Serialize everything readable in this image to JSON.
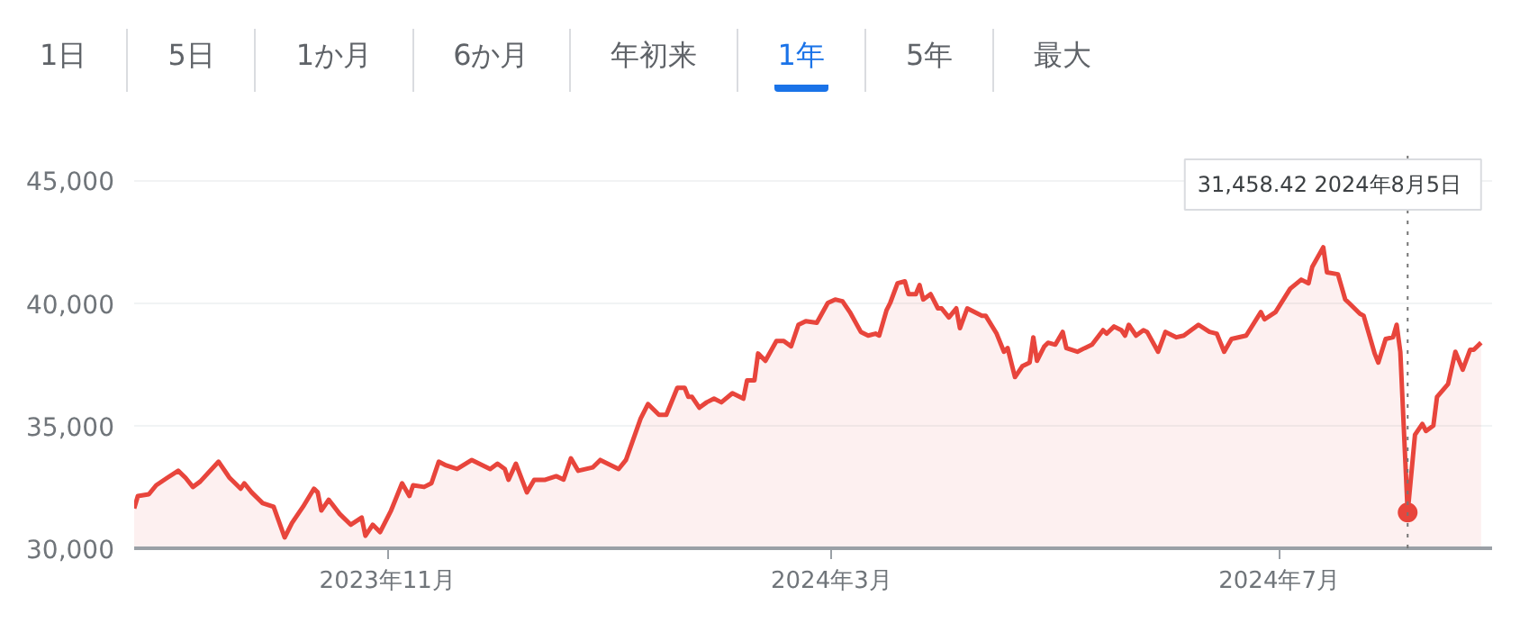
{
  "chart_data": {
    "type": "area",
    "color": "#e8453c",
    "x": [
      "2023-08-24",
      "2023-08-25",
      "2023-08-28",
      "2023-08-30",
      "2023-09-02",
      "2023-09-05",
      "2023-09-07",
      "2023-09-09",
      "2023-09-11",
      "2023-09-16",
      "2023-09-19",
      "2023-09-22",
      "2023-09-23",
      "2023-09-25",
      "2023-09-28",
      "2023-10-01",
      "2023-10-04",
      "2023-10-06",
      "2023-10-09",
      "2023-10-12",
      "2023-10-13",
      "2023-10-14",
      "2023-10-16",
      "2023-10-19",
      "2023-10-22",
      "2023-10-25",
      "2023-10-26",
      "2023-10-28",
      "2023-10-30",
      "2023-11-02",
      "2023-11-03",
      "2023-11-05",
      "2023-11-07",
      "2023-11-08",
      "2023-11-11",
      "2023-11-13",
      "2023-11-15",
      "2023-11-17",
      "2023-11-20",
      "2023-11-24",
      "2023-11-27",
      "2023-11-29",
      "2023-12-01",
      "2023-12-03",
      "2023-12-04",
      "2023-12-06",
      "2023-12-09",
      "2023-12-11",
      "2023-12-14",
      "2023-12-17",
      "2023-12-19",
      "2023-12-21",
      "2023-12-23",
      "2023-12-27",
      "2023-12-29",
      "2024-01-03",
      "2024-01-05",
      "2024-01-09",
      "2024-01-11",
      "2024-01-14",
      "2024-01-16",
      "2024-01-19",
      "2024-01-21",
      "2024-01-22",
      "2024-01-23",
      "2024-01-25",
      "2024-01-27",
      "2024-01-29",
      "2024-01-31",
      "2024-02-03",
      "2024-02-06",
      "2024-02-07",
      "2024-02-09",
      "2024-02-10",
      "2024-02-12",
      "2024-02-15",
      "2024-02-17",
      "2024-02-19",
      "2024-02-21",
      "2024-02-23",
      "2024-02-26",
      "2024-02-29",
      "2024-03-02",
      "2024-03-04",
      "2024-03-06",
      "2024-03-09",
      "2024-03-11",
      "2024-03-13",
      "2024-03-14",
      "2024-03-16",
      "2024-03-17",
      "2024-03-19",
      "2024-03-21",
      "2024-03-22",
      "2024-03-24",
      "2024-03-25",
      "2024-03-26",
      "2024-03-28",
      "2024-03-30",
      "2024-03-31",
      "2024-04-02",
      "2024-04-04",
      "2024-04-05",
      "2024-04-07",
      "2024-04-11",
      "2024-04-12",
      "2024-04-15",
      "2024-04-17",
      "2024-04-18",
      "2024-04-20",
      "2024-04-22",
      "2024-04-24",
      "2024-04-25",
      "2024-04-26",
      "2024-04-28",
      "2024-04-29",
      "2024-05-01",
      "2024-05-03",
      "2024-05-04",
      "2024-05-07",
      "2024-05-09",
      "2024-05-11",
      "2024-05-14",
      "2024-05-15",
      "2024-05-17",
      "2024-05-19",
      "2024-05-20",
      "2024-05-21",
      "2024-05-23",
      "2024-05-25",
      "2024-05-26",
      "2024-05-29",
      "2024-05-31",
      "2024-06-03",
      "2024-06-05",
      "2024-06-09",
      "2024-06-12",
      "2024-06-14",
      "2024-06-16",
      "2024-06-18",
      "2024-06-22",
      "2024-06-26",
      "2024-06-27",
      "2024-06-30",
      "2024-07-04",
      "2024-07-07",
      "2024-07-09",
      "2024-07-10",
      "2024-07-13",
      "2024-07-14",
      "2024-07-17",
      "2024-07-19",
      "2024-07-20",
      "2024-07-23",
      "2024-07-24",
      "2024-07-27",
      "2024-07-28",
      "2024-07-30",
      "2024-08-01",
      "2024-08-02",
      "2024-08-03",
      "2024-08-05",
      "2024-08-07",
      "2024-08-09",
      "2024-08-10",
      "2024-08-12",
      "2024-08-13",
      "2024-08-16",
      "2024-08-18",
      "2024-08-20",
      "2024-08-22",
      "2024-08-23",
      "2024-08-25"
    ],
    "values": [
      31620,
      32130,
      32200,
      32570,
      32870,
      33160,
      32870,
      32500,
      32720,
      33530,
      32870,
      32430,
      32650,
      32280,
      31840,
      31690,
      30440,
      31030,
      31690,
      32430,
      32280,
      31540,
      31980,
      31400,
      30960,
      31250,
      30510,
      30960,
      30660,
      31540,
      31910,
      32650,
      32130,
      32570,
      32500,
      32650,
      33530,
      33380,
      33230,
      33600,
      33380,
      33230,
      33450,
      33230,
      32790,
      33450,
      32280,
      32790,
      32790,
      32940,
      32800,
      33670,
      33160,
      33300,
      33600,
      33230,
      33600,
      35290,
      35880,
      35440,
      35440,
      36540,
      36540,
      36170,
      36170,
      35730,
      35950,
      36100,
      35950,
      36320,
      36100,
      36840,
      36840,
      37940,
      37640,
      38450,
      38450,
      38230,
      39110,
      39260,
      39190,
      40000,
      40140,
      40070,
      39630,
      38820,
      38670,
      38750,
      38670,
      39700,
      40000,
      40800,
      40880,
      40360,
      40360,
      40730,
      40140,
      40360,
      39780,
      39780,
      39410,
      39780,
      38970,
      39780,
      39480,
      39480,
      38750,
      38010,
      38160,
      36980,
      37420,
      37570,
      38600,
      37640,
      38230,
      38380,
      38300,
      38820,
      38160,
      38010,
      38160,
      38300,
      38890,
      38750,
      39040,
      38890,
      38670,
      39110,
      38670,
      38890,
      38820,
      38010,
      38820,
      38600,
      38670,
      39110,
      38820,
      38750,
      38010,
      38530,
      38670,
      39630,
      39330,
      39630,
      40580,
      40950,
      40800,
      41470,
      42270,
      41250,
      41170,
      40140,
      40000,
      39560,
      39480,
      37940,
      37570,
      38530,
      38600,
      39110,
      38010,
      31458.42,
      34630,
      35070,
      34780,
      35000,
      36170,
      36690,
      38010,
      37280,
      38090,
      38090,
      38380
    ],
    "xlim": [
      "2023-08-24",
      "2024-08-28"
    ],
    "xticks": [
      {
        "value": "2023-11-01",
        "label": "2023年11月"
      },
      {
        "value": "2024-03-01",
        "label": "2024年3月"
      },
      {
        "value": "2024-07-01",
        "label": "2024年7月"
      }
    ],
    "ylim": [
      30000,
      46000
    ],
    "yticks": [
      {
        "value": 30000,
        "label": "30,000"
      },
      {
        "value": 35000,
        "label": "35,000"
      },
      {
        "value": 40000,
        "label": "40,000"
      },
      {
        "value": 45000,
        "label": "45,000"
      }
    ],
    "grid": "y",
    "marker": "none",
    "line_style": "solid",
    "ref_lines": [
      {
        "axis": "x",
        "value": "2024-08-05",
        "color": "#757575",
        "line_style": "dotted"
      }
    ],
    "annotations": [
      "31,458.42  2024年8月5日",
      "1日",
      "5日",
      "1か月",
      "6か月",
      "年初来",
      "1年",
      "5年",
      "最大"
    ]
  }
}
